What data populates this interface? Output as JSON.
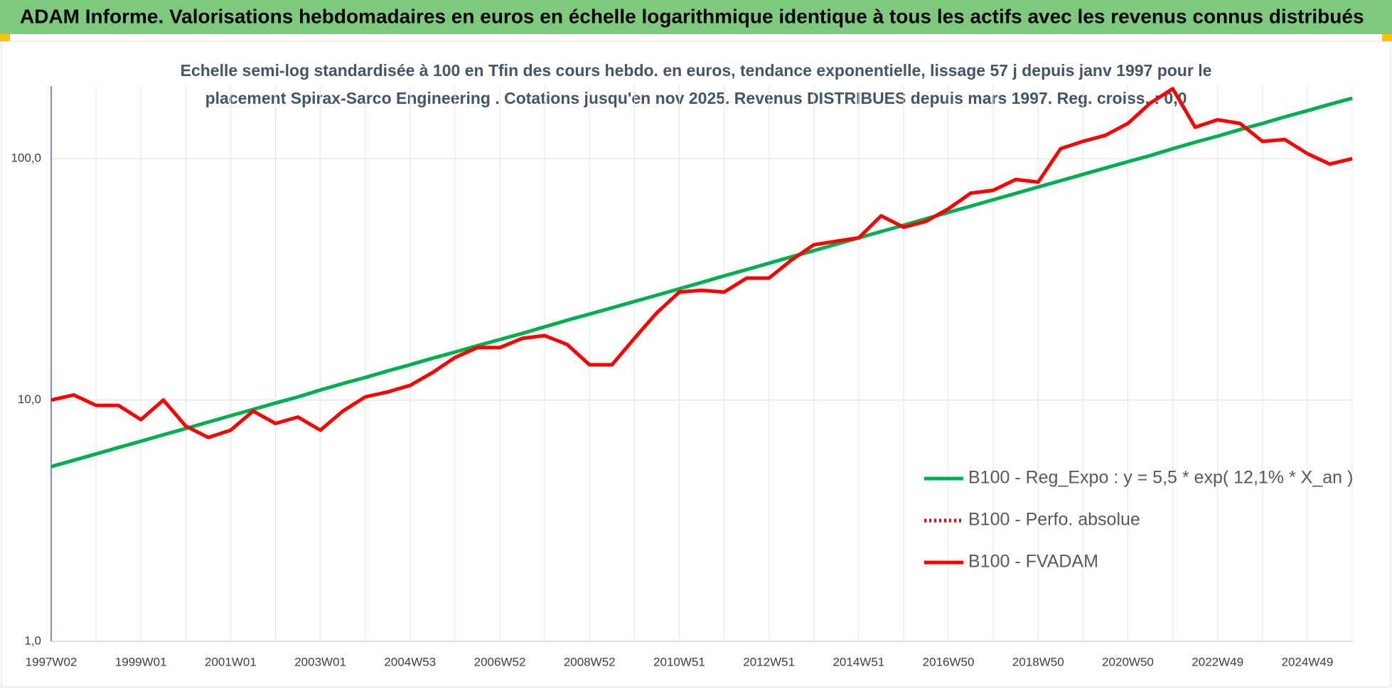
{
  "header": {
    "title": "ADAM Informe. Valorisations hebdomadaires en euros en échelle logarithmique identique à tous les actifs avec les revenus connus distribués"
  },
  "chart_data": {
    "type": "line",
    "title_lines": [
      "Echelle semi-log standardisée à 100 en Tfin des cours hebdo. en euros, tendance exponentielle, lissage 57 j depuis janv 1997 pour le",
      "placement Spirax-Sarco Engineering . Cotations jusqu'en nov 2025. Revenus DISTRIBUES depuis mars 1997. Reg. croiss. : 0,0"
    ],
    "categories": [
      "1997W02",
      null,
      null,
      null,
      "1999W01",
      null,
      null,
      null,
      "2001W01",
      null,
      null,
      null,
      "2003W01",
      null,
      null,
      null,
      "2004W53",
      null,
      null,
      null,
      "2006W52",
      null,
      null,
      null,
      "2008W52",
      null,
      null,
      null,
      "2010W51",
      null,
      null,
      null,
      "2012W51",
      null,
      null,
      null,
      "2014W51",
      null,
      null,
      null,
      "2016W50",
      null,
      null,
      null,
      "2018W50",
      null,
      null,
      null,
      "2020W50",
      null,
      null,
      null,
      "2022W49",
      null,
      null,
      null,
      "2024W49",
      null,
      null
    ],
    "log_scale": true,
    "ylim": [
      1,
      200
    ],
    "yticks": [
      {
        "value": 1,
        "label": "1,0"
      },
      {
        "value": 10,
        "label": "10,0"
      },
      {
        "value": 100,
        "label": "100,0"
      }
    ],
    "grid": true,
    "legend": "lower-right",
    "series": [
      {
        "name": "B100 - Reg_Expo : y = 5,5 * exp( 12,1% *  X_an )",
        "color": "#00b050",
        "dash": "solid",
        "values": [
          5.3,
          5.63,
          5.98,
          6.36,
          6.75,
          7.18,
          7.62,
          8.1,
          8.61,
          9.14,
          9.72,
          10.3,
          11.0,
          11.7,
          12.4,
          13.2,
          14.0,
          14.9,
          15.8,
          16.8,
          17.8,
          18.9,
          20.1,
          21.4,
          22.7,
          24.1,
          25.6,
          27.2,
          28.9,
          30.7,
          32.7,
          34.7,
          36.9,
          39.2,
          41.6,
          44.2,
          47.0,
          49.9,
          53.0,
          56.4,
          59.9,
          63.6,
          67.6,
          71.8,
          76.3,
          81.1,
          86.1,
          91.5,
          97.2,
          103,
          110,
          117,
          124,
          132,
          140,
          149,
          158,
          168,
          178
        ]
      },
      {
        "name": "B100 - Perfo. absolue",
        "color": "#ff0000",
        "dash": "dotted",
        "values": [
          null,
          null,
          null,
          null,
          null,
          null,
          null,
          null,
          null,
          null,
          null,
          null,
          null,
          null,
          null,
          null,
          null,
          null,
          null,
          null,
          null,
          null,
          null,
          null,
          null,
          null,
          null,
          null,
          null,
          null,
          null,
          null,
          null,
          null,
          null,
          null,
          null,
          null,
          null,
          null,
          null,
          null,
          null,
          null,
          null,
          null,
          null,
          null,
          null,
          null,
          null,
          null,
          null,
          null,
          null,
          null,
          null,
          null,
          null
        ]
      },
      {
        "name": "B100 - FVADAM",
        "color": "#ff0000",
        "dash": "solid",
        "values": [
          10.0,
          10.5,
          9.5,
          9.5,
          8.3,
          10.0,
          7.8,
          7.0,
          7.5,
          9.0,
          8.0,
          8.5,
          7.5,
          9.0,
          10.3,
          10.8,
          11.5,
          13.0,
          15.0,
          16.5,
          16.5,
          18.0,
          18.5,
          17.0,
          14.0,
          14.0,
          18.0,
          23.0,
          28.0,
          28.5,
          28.0,
          32.0,
          32.0,
          38.0,
          44.0,
          45.5,
          47.0,
          58.0,
          52.0,
          55.0,
          62.0,
          72.0,
          74.0,
          82.0,
          80.0,
          110,
          118,
          125,
          140,
          170,
          195,
          135,
          145,
          140,
          118,
          120,
          105,
          95,
          100
        ]
      }
    ]
  }
}
